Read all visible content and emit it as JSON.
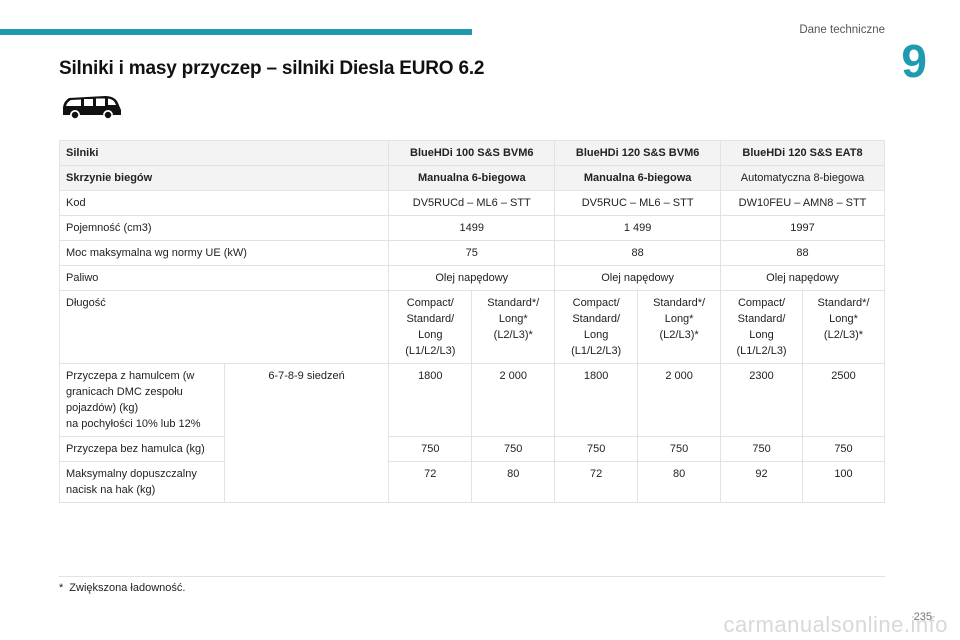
{
  "header": {
    "section": "Dane techniczne",
    "chapter": "9"
  },
  "title": "Silniki i masy przyczep – silniki Diesla EURO 6.2",
  "table": {
    "engines_label": "Silniki",
    "engines": [
      "BlueHDi 100 S&S BVM6",
      "BlueHDi 120 S&S BVM6",
      "BlueHDi 120 S&S EAT8"
    ],
    "gearbox_label": "Skrzynie biegów",
    "gearboxes": [
      "Manualna 6-biegowa",
      "Manualna 6-biegowa",
      "Automatyczna 8-biegowa"
    ],
    "code_label": "Kod",
    "codes": [
      "DV5RUCd – ML6 – STT",
      "DV5RUC – ML6 – STT",
      "DW10FEU – AMN8 – STT"
    ],
    "capacity_label": "Pojemność (cm3)",
    "capacities": [
      "1499",
      "1 499",
      "1997"
    ],
    "power_label": "Moc maksymalna wg normy UE (kW)",
    "powers": [
      "75",
      "88",
      "88"
    ],
    "fuel_label": "Paliwo",
    "fuels": [
      "Olej napędowy",
      "Olej napędowy",
      "Olej napędowy"
    ],
    "length_label": "Długość",
    "lengths": [
      "Compact/\nStandard/\nLong\n(L1/L2/L3)",
      "Standard*/\nLong*\n(L2/L3)*",
      "Compact/\nStandard/\nLong\n(L1/L2/L3)",
      "Standard*/\nLong*\n(L2/L3)*",
      "Compact/\nStandard/\nLong\n(L1/L2/L3)",
      "Standard*/\nLong*\n(L2/L3)*"
    ],
    "braked_label": "Przyczepa z hamulcem (w granicach DMC zespołu pojazdów) (kg)\nna pochyłości 10% lub 12%",
    "seats_label": "6-7-8-9 siedzeń",
    "braked": [
      "1800",
      "2 000",
      "1800",
      "2 000",
      "2300",
      "2500"
    ],
    "unbraked_label": "Przyczepa bez hamulca (kg)",
    "unbraked": [
      "750",
      "750",
      "750",
      "750",
      "750",
      "750"
    ],
    "noseweight_label": "Maksymalny dopuszczalny nacisk na hak (kg)",
    "noseweight": [
      "72",
      "80",
      "72",
      "80",
      "92",
      "100"
    ]
  },
  "footnote": {
    "marker": "*",
    "text": "Zwiększona ładowność."
  },
  "page_number": "235",
  "watermark": "carmanualsonline.info"
}
